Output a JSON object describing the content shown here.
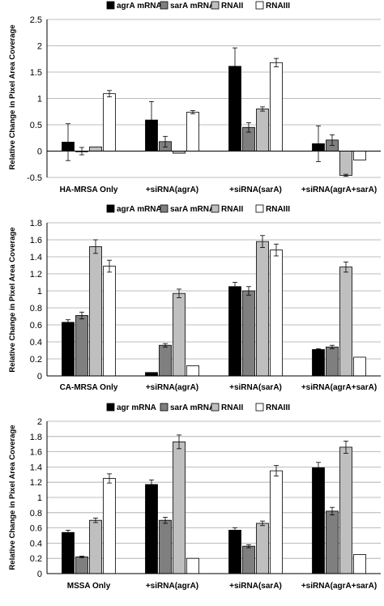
{
  "chart_data": [
    {
      "type": "bar",
      "categories": [
        "HA-MRSA Only",
        "+siRNA(agrA)",
        "+siRNA(sarA)",
        "+siRNA(agrA+sarA)"
      ],
      "series": [
        {
          "name": "agrA mRNA",
          "color": "#000000",
          "values": [
            0.17,
            0.59,
            1.61,
            0.14
          ],
          "errors": [
            0.35,
            0.35,
            0.35,
            0.34
          ]
        },
        {
          "name": "sarA mRNA",
          "color": "#7f7f7f",
          "values": [
            0.0,
            0.18,
            0.45,
            0.21
          ],
          "errors": [
            0.07,
            0.1,
            0.09,
            0.1
          ]
        },
        {
          "name": "RNAII",
          "color": "#bfbfbf",
          "values": [
            0.08,
            -0.04,
            0.8,
            -0.46
          ],
          "errors": [
            0.0,
            0.0,
            0.04,
            0.02
          ]
        },
        {
          "name": "RNAIII",
          "color": "#ffffff",
          "values": [
            1.09,
            0.74,
            1.68,
            -0.17
          ],
          "errors": [
            0.06,
            0.03,
            0.08,
            0.0
          ]
        }
      ],
      "ylabel": "Relative Change in Pixel Area Coverage",
      "ylim": [
        -0.5,
        2.5
      ],
      "yticks": [
        "-0.5",
        "0",
        "0.5",
        "1",
        "1.5",
        "2",
        "2.5"
      ],
      "grid": true,
      "legend": "top"
    },
    {
      "type": "bar",
      "categories": [
        "CA-MRSA Only",
        "+siRNA(agrA)",
        "+siRNA(sarA)",
        "+siRNA(agrA+sarA)"
      ],
      "series": [
        {
          "name": "agrA mRNA",
          "color": "#000000",
          "values": [
            0.63,
            0.04,
            1.05,
            0.31
          ],
          "errors": [
            0.03,
            0.0,
            0.05,
            0.01
          ]
        },
        {
          "name": "sarA mRNA",
          "color": "#7f7f7f",
          "values": [
            0.71,
            0.36,
            1.0,
            0.34
          ],
          "errors": [
            0.04,
            0.02,
            0.05,
            0.02
          ]
        },
        {
          "name": "RNAII",
          "color": "#bfbfbf",
          "values": [
            1.52,
            0.97,
            1.58,
            1.28
          ],
          "errors": [
            0.08,
            0.05,
            0.07,
            0.06
          ]
        },
        {
          "name": "RNAIII",
          "color": "#ffffff",
          "values": [
            1.29,
            0.12,
            1.48,
            0.22
          ],
          "errors": [
            0.07,
            0.0,
            0.07,
            0.0
          ]
        }
      ],
      "ylabel": "Relative Change in Pixel Area Coverage",
      "ylim": [
        0,
        1.8
      ],
      "yticks": [
        "0",
        "0.2",
        "0.4",
        "0.6",
        "0.8",
        "1",
        "1.2",
        "1.4",
        "1.6",
        "1.8"
      ],
      "grid": true,
      "legend": "top"
    },
    {
      "type": "bar",
      "categories": [
        "MSSA Only",
        "+siRNA(agrA)",
        "+siRNA(sarA)",
        "+siRNA(agrA+sarA)"
      ],
      "series": [
        {
          "name": "agr mRNA",
          "color": "#000000",
          "values": [
            0.54,
            1.17,
            0.57,
            1.39
          ],
          "errors": [
            0.03,
            0.06,
            0.03,
            0.07
          ]
        },
        {
          "name": "sarA mRNA",
          "color": "#7f7f7f",
          "values": [
            0.22,
            0.7,
            0.36,
            0.82
          ],
          "errors": [
            0.01,
            0.04,
            0.02,
            0.05
          ]
        },
        {
          "name": "RNAII",
          "color": "#bfbfbf",
          "values": [
            0.7,
            1.73,
            0.66,
            1.66
          ],
          "errors": [
            0.03,
            0.09,
            0.03,
            0.08
          ]
        },
        {
          "name": "RNAIII",
          "color": "#ffffff",
          "values": [
            1.25,
            0.2,
            1.35,
            0.25
          ],
          "errors": [
            0.06,
            0.0,
            0.07,
            0.0
          ]
        }
      ],
      "ylabel": "Relative Change in Pixel Area Coverage",
      "ylim": [
        0,
        2
      ],
      "yticks": [
        "0",
        "0.2",
        "0.4",
        "0.6",
        "0.8",
        "1",
        "1.2",
        "1.4",
        "1.6",
        "1.8",
        "2"
      ],
      "grid": true,
      "legend": "top"
    }
  ]
}
